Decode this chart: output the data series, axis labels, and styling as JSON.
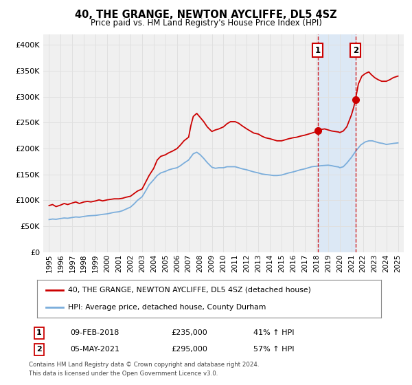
{
  "title": "40, THE GRANGE, NEWTON AYCLIFFE, DL5 4SZ",
  "subtitle": "Price paid vs. HM Land Registry's House Price Index (HPI)",
  "legend_line1": "40, THE GRANGE, NEWTON AYCLIFFE, DL5 4SZ (detached house)",
  "legend_line2": "HPI: Average price, detached house, County Durham",
  "footnote1": "Contains HM Land Registry data © Crown copyright and database right 2024.",
  "footnote2": "This data is licensed under the Open Government Licence v3.0.",
  "marker1_date": "09-FEB-2018",
  "marker1_price": 235000,
  "marker1_label": "41% ↑ HPI",
  "marker2_date": "05-MAY-2021",
  "marker2_price": 295000,
  "marker2_label": "57% ↑ HPI",
  "marker1_x": 2018.1,
  "marker2_x": 2021.35,
  "vline1_x": 2018.1,
  "vline2_x": 2021.35,
  "red_color": "#cc0000",
  "blue_color": "#7aaddb",
  "shading_color": "#dce8f5",
  "background_color": "#f0f0f0",
  "grid_color": "#e0e0e0",
  "ylim": [
    0,
    420000
  ],
  "xlim_left": 1994.5,
  "xlim_right": 2025.5,
  "yticks": [
    0,
    50000,
    100000,
    150000,
    200000,
    250000,
    300000,
    350000,
    400000
  ],
  "ytick_labels": [
    "£0",
    "£50K",
    "£100K",
    "£150K",
    "£200K",
    "£250K",
    "£300K",
    "£350K",
    "£400K"
  ],
  "xticks": [
    1995,
    1996,
    1997,
    1998,
    1999,
    2000,
    2001,
    2002,
    2003,
    2004,
    2005,
    2006,
    2007,
    2008,
    2009,
    2010,
    2011,
    2012,
    2013,
    2014,
    2015,
    2016,
    2017,
    2018,
    2019,
    2020,
    2021,
    2022,
    2023,
    2024,
    2025
  ],
  "red_data": [
    [
      1995.0,
      90000
    ],
    [
      1995.3,
      92000
    ],
    [
      1995.6,
      88000
    ],
    [
      1996.0,
      91000
    ],
    [
      1996.3,
      94000
    ],
    [
      1996.6,
      92000
    ],
    [
      1997.0,
      95000
    ],
    [
      1997.3,
      97000
    ],
    [
      1997.6,
      94000
    ],
    [
      1998.0,
      97000
    ],
    [
      1998.3,
      98000
    ],
    [
      1998.6,
      97000
    ],
    [
      1999.0,
      99000
    ],
    [
      1999.3,
      101000
    ],
    [
      1999.6,
      99000
    ],
    [
      2000.0,
      101000
    ],
    [
      2000.3,
      102000
    ],
    [
      2000.6,
      103000
    ],
    [
      2001.0,
      103000
    ],
    [
      2001.3,
      104000
    ],
    [
      2001.6,
      106000
    ],
    [
      2002.0,
      108000
    ],
    [
      2002.3,
      113000
    ],
    [
      2002.6,
      118000
    ],
    [
      2003.0,
      122000
    ],
    [
      2003.3,
      135000
    ],
    [
      2003.6,
      148000
    ],
    [
      2004.0,
      162000
    ],
    [
      2004.3,
      178000
    ],
    [
      2004.6,
      185000
    ],
    [
      2005.0,
      188000
    ],
    [
      2005.3,
      192000
    ],
    [
      2005.6,
      195000
    ],
    [
      2006.0,
      200000
    ],
    [
      2006.3,
      207000
    ],
    [
      2006.6,
      215000
    ],
    [
      2007.0,
      222000
    ],
    [
      2007.2,
      245000
    ],
    [
      2007.4,
      262000
    ],
    [
      2007.7,
      268000
    ],
    [
      2008.0,
      260000
    ],
    [
      2008.3,
      252000
    ],
    [
      2008.6,
      242000
    ],
    [
      2009.0,
      233000
    ],
    [
      2009.3,
      236000
    ],
    [
      2009.6,
      238000
    ],
    [
      2010.0,
      242000
    ],
    [
      2010.3,
      248000
    ],
    [
      2010.6,
      252000
    ],
    [
      2011.0,
      252000
    ],
    [
      2011.3,
      249000
    ],
    [
      2011.6,
      244000
    ],
    [
      2012.0,
      238000
    ],
    [
      2012.3,
      234000
    ],
    [
      2012.6,
      230000
    ],
    [
      2013.0,
      228000
    ],
    [
      2013.3,
      224000
    ],
    [
      2013.6,
      221000
    ],
    [
      2014.0,
      219000
    ],
    [
      2014.3,
      217000
    ],
    [
      2014.6,
      215000
    ],
    [
      2015.0,
      215000
    ],
    [
      2015.3,
      217000
    ],
    [
      2015.6,
      219000
    ],
    [
      2016.0,
      221000
    ],
    [
      2016.3,
      222000
    ],
    [
      2016.6,
      224000
    ],
    [
      2017.0,
      226000
    ],
    [
      2017.3,
      228000
    ],
    [
      2017.6,
      230000
    ],
    [
      2018.0,
      233000
    ],
    [
      2018.1,
      235000
    ],
    [
      2018.4,
      237000
    ],
    [
      2018.7,
      238000
    ],
    [
      2019.0,
      236000
    ],
    [
      2019.3,
      234000
    ],
    [
      2019.6,
      233000
    ],
    [
      2019.9,
      232000
    ],
    [
      2020.0,
      231000
    ],
    [
      2020.3,
      234000
    ],
    [
      2020.6,
      242000
    ],
    [
      2021.0,
      265000
    ],
    [
      2021.2,
      280000
    ],
    [
      2021.35,
      295000
    ],
    [
      2021.6,
      325000
    ],
    [
      2021.9,
      340000
    ],
    [
      2022.2,
      345000
    ],
    [
      2022.5,
      348000
    ],
    [
      2022.7,
      343000
    ],
    [
      2023.0,
      337000
    ],
    [
      2023.3,
      333000
    ],
    [
      2023.6,
      330000
    ],
    [
      2024.0,
      330000
    ],
    [
      2024.3,
      333000
    ],
    [
      2024.6,
      337000
    ],
    [
      2025.0,
      340000
    ]
  ],
  "blue_data": [
    [
      1995.0,
      63000
    ],
    [
      1995.3,
      64000
    ],
    [
      1995.6,
      63500
    ],
    [
      1996.0,
      65000
    ],
    [
      1996.3,
      66000
    ],
    [
      1996.6,
      65500
    ],
    [
      1997.0,
      67000
    ],
    [
      1997.3,
      68000
    ],
    [
      1997.6,
      67500
    ],
    [
      1998.0,
      69000
    ],
    [
      1998.3,
      70000
    ],
    [
      1998.6,
      70500
    ],
    [
      1999.0,
      71000
    ],
    [
      1999.3,
      72000
    ],
    [
      1999.6,
      73000
    ],
    [
      2000.0,
      74000
    ],
    [
      2000.3,
      75500
    ],
    [
      2000.6,
      77000
    ],
    [
      2001.0,
      78000
    ],
    [
      2001.3,
      80000
    ],
    [
      2001.6,
      83000
    ],
    [
      2002.0,
      87000
    ],
    [
      2002.3,
      93000
    ],
    [
      2002.6,
      100000
    ],
    [
      2003.0,
      107000
    ],
    [
      2003.3,
      118000
    ],
    [
      2003.6,
      130000
    ],
    [
      2004.0,
      140000
    ],
    [
      2004.3,
      148000
    ],
    [
      2004.6,
      153000
    ],
    [
      2005.0,
      156000
    ],
    [
      2005.3,
      159000
    ],
    [
      2005.6,
      161000
    ],
    [
      2006.0,
      163000
    ],
    [
      2006.3,
      167000
    ],
    [
      2006.6,
      172000
    ],
    [
      2007.0,
      178000
    ],
    [
      2007.2,
      184000
    ],
    [
      2007.4,
      190000
    ],
    [
      2007.7,
      193000
    ],
    [
      2008.0,
      188000
    ],
    [
      2008.3,
      181000
    ],
    [
      2008.6,
      173000
    ],
    [
      2009.0,
      164000
    ],
    [
      2009.3,
      162000
    ],
    [
      2009.6,
      163000
    ],
    [
      2010.0,
      163000
    ],
    [
      2010.3,
      165000
    ],
    [
      2010.6,
      165000
    ],
    [
      2011.0,
      165000
    ],
    [
      2011.3,
      163000
    ],
    [
      2011.6,
      161000
    ],
    [
      2012.0,
      159000
    ],
    [
      2012.3,
      157000
    ],
    [
      2012.6,
      155000
    ],
    [
      2013.0,
      153000
    ],
    [
      2013.3,
      151000
    ],
    [
      2013.6,
      150000
    ],
    [
      2014.0,
      149000
    ],
    [
      2014.3,
      148000
    ],
    [
      2014.6,
      148000
    ],
    [
      2015.0,
      149000
    ],
    [
      2015.3,
      151000
    ],
    [
      2015.6,
      153000
    ],
    [
      2016.0,
      155000
    ],
    [
      2016.3,
      157000
    ],
    [
      2016.6,
      159000
    ],
    [
      2017.0,
      161000
    ],
    [
      2017.3,
      163000
    ],
    [
      2017.6,
      165000
    ],
    [
      2018.0,
      166000
    ],
    [
      2018.4,
      167000
    ],
    [
      2018.7,
      167500
    ],
    [
      2019.0,
      168000
    ],
    [
      2019.3,
      167000
    ],
    [
      2019.6,
      165500
    ],
    [
      2019.9,
      164500
    ],
    [
      2020.0,
      163000
    ],
    [
      2020.3,
      165000
    ],
    [
      2020.6,
      172000
    ],
    [
      2021.0,
      183000
    ],
    [
      2021.4,
      196000
    ],
    [
      2021.8,
      207000
    ],
    [
      2022.2,
      213000
    ],
    [
      2022.5,
      215000
    ],
    [
      2022.8,
      215000
    ],
    [
      2023.1,
      213000
    ],
    [
      2023.4,
      211000
    ],
    [
      2023.7,
      210000
    ],
    [
      2024.0,
      208000
    ],
    [
      2024.3,
      209000
    ],
    [
      2024.6,
      210000
    ],
    [
      2025.0,
      211000
    ]
  ]
}
